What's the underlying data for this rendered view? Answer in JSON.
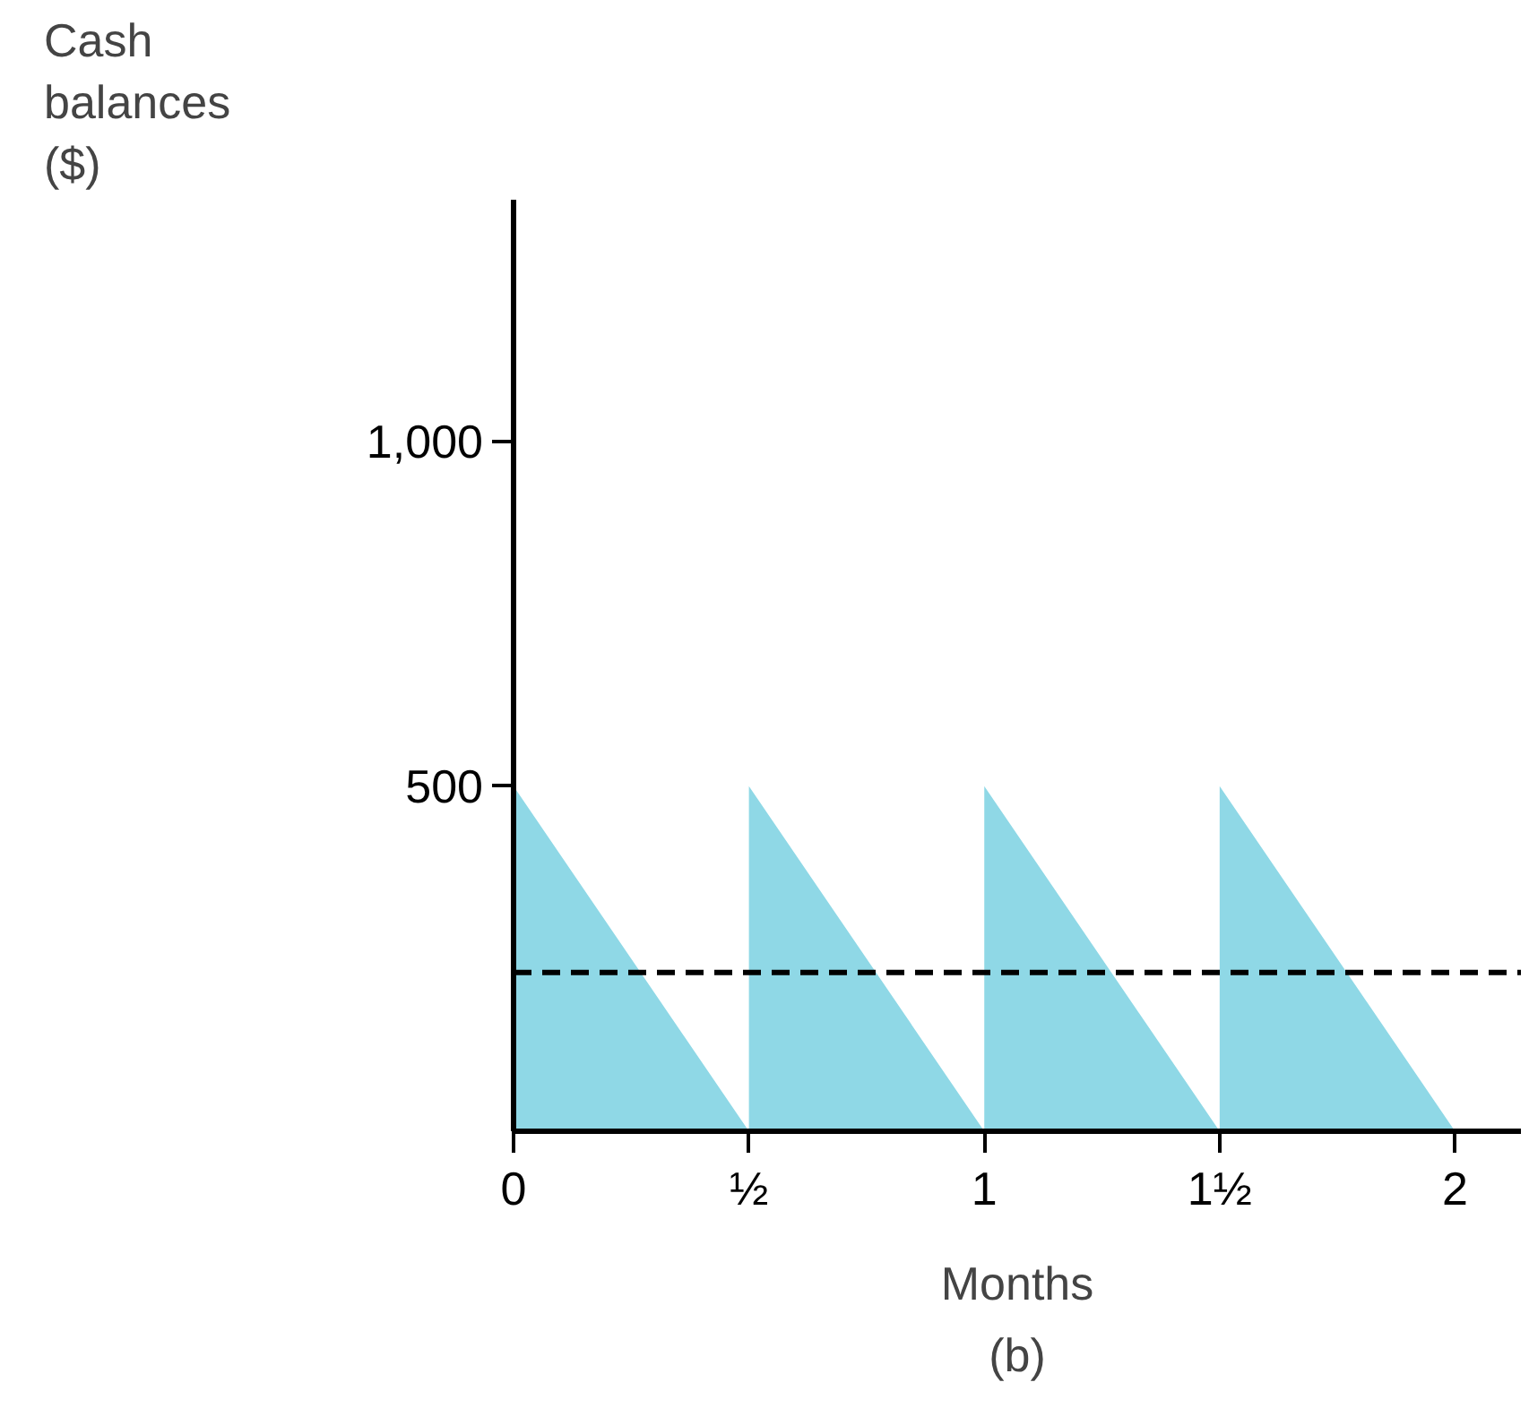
{
  "chart_data": {
    "type": "area",
    "ylabel": "Cash\nbalances\n($)",
    "xlabel": "Months",
    "x": [
      0,
      0.5,
      0.5,
      1,
      1,
      1.5,
      1.5,
      2
    ],
    "values": [
      500,
      0,
      500,
      0,
      500,
      0,
      500,
      0
    ],
    "color": "#8fd8e6",
    "xlim": [
      0,
      2.14
    ],
    "ylim": [
      0,
      1350
    ],
    "xticks": [
      0,
      {
        "value": 0.5,
        "label": "½"
      },
      1,
      {
        "value": 1.5,
        "label": "1½"
      },
      2
    ],
    "yticks": [
      500,
      {
        "value": 1000,
        "label": "1,000"
      }
    ],
    "ref_lines": [
      {
        "axis": "y",
        "value": 230,
        "line_style": "dashed",
        "color": "#000000"
      }
    ],
    "annotations": [
      "(b)"
    ],
    "grid": false
  }
}
